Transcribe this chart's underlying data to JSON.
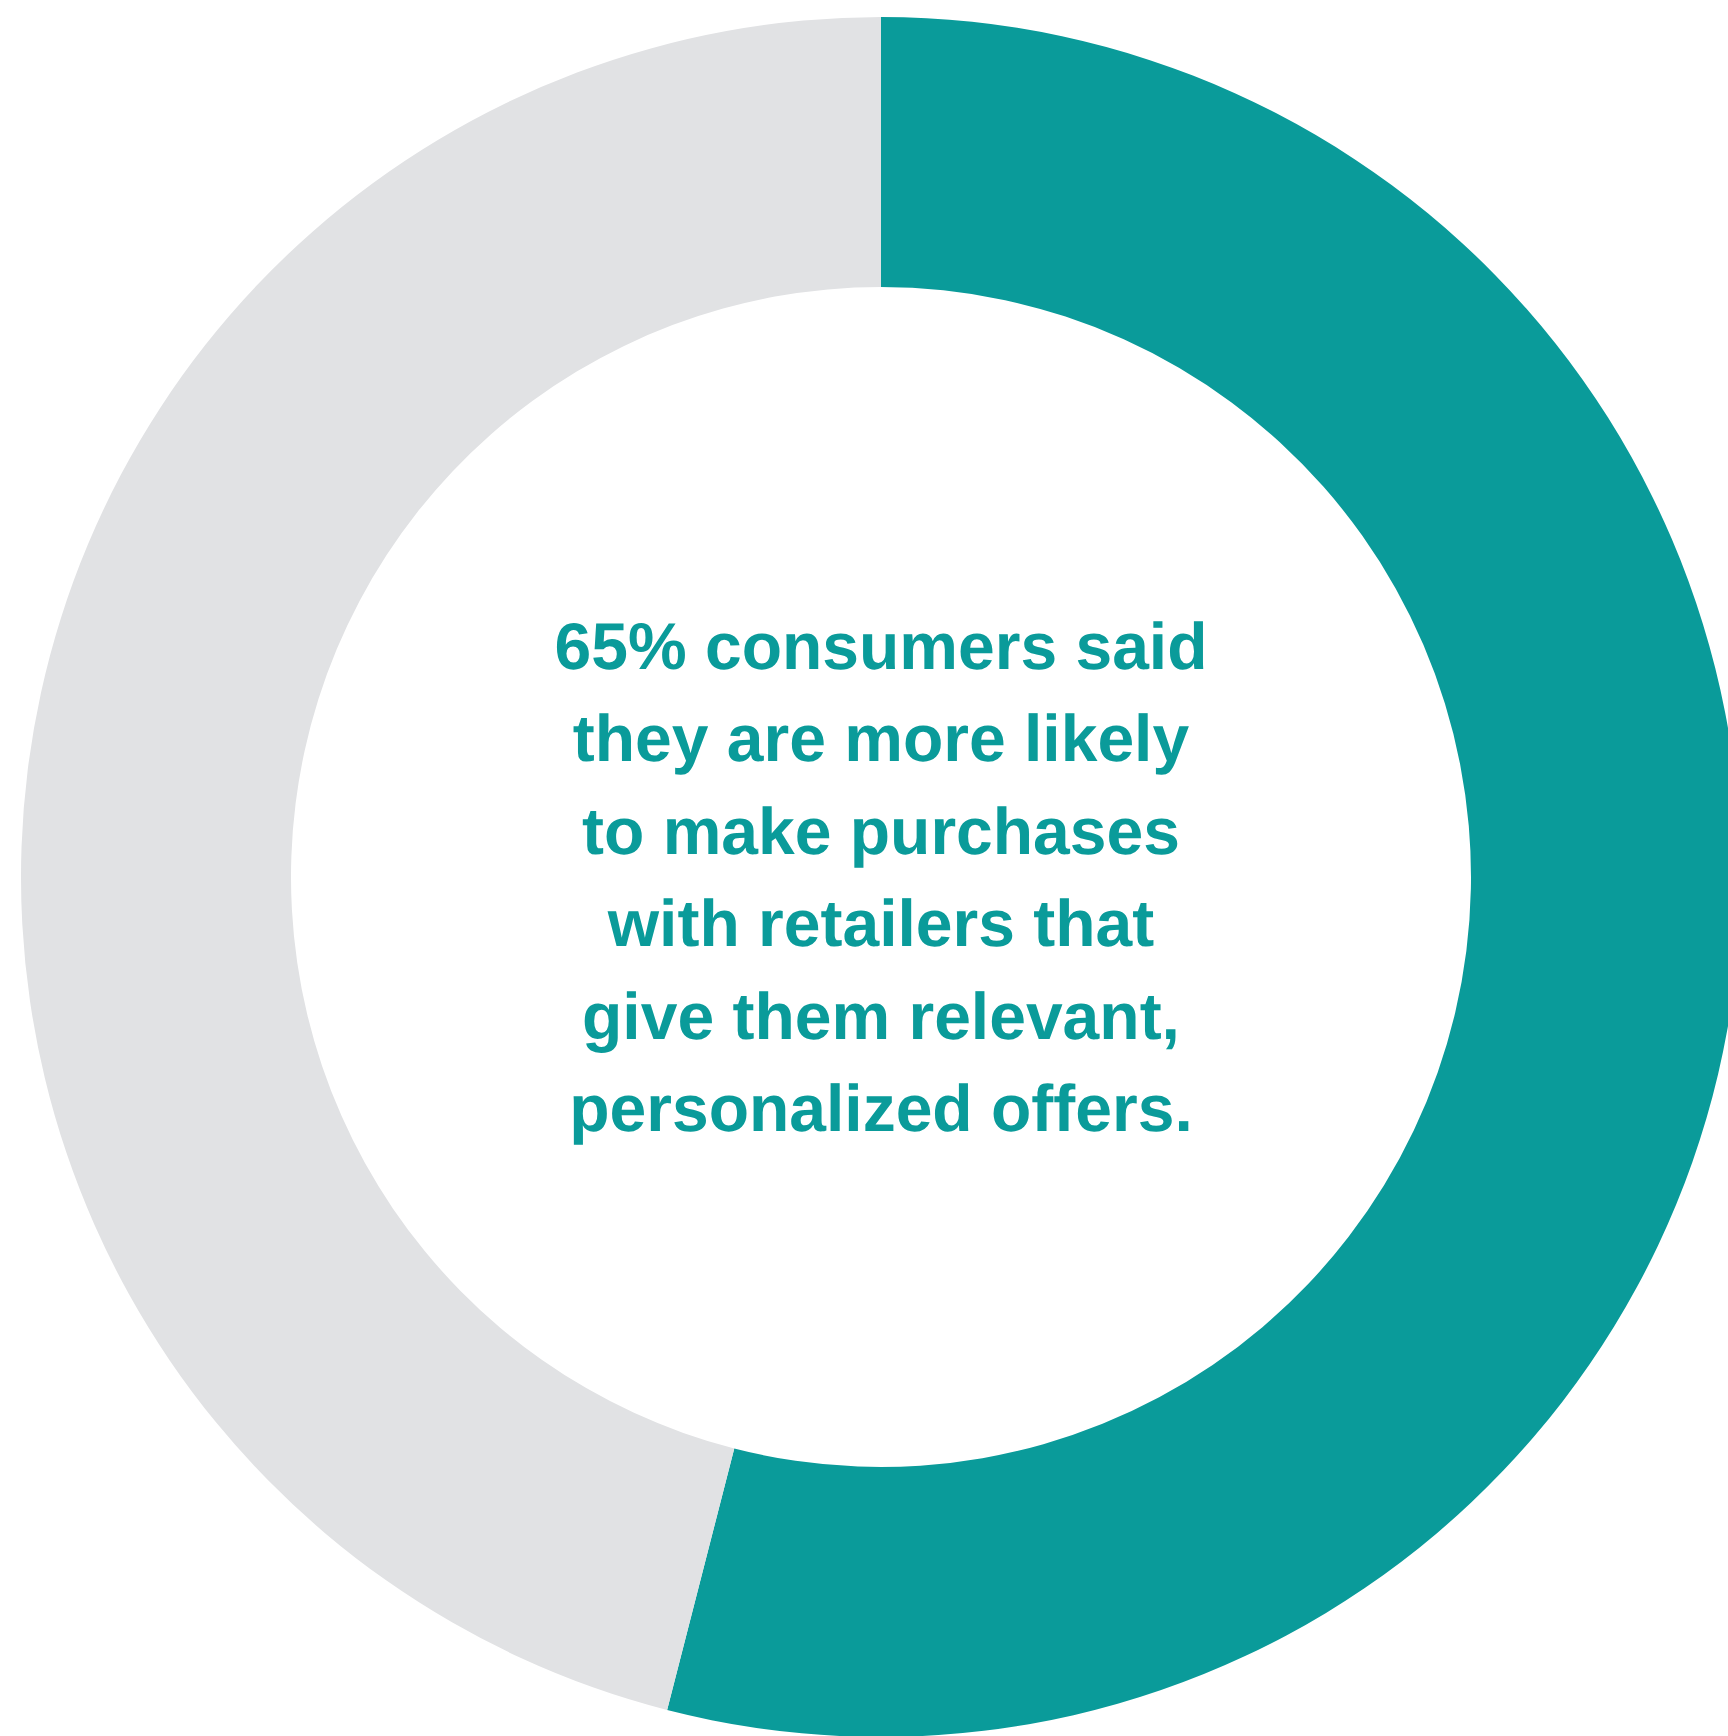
{
  "chart_data": {
    "type": "donut",
    "categories": [
      null,
      null
    ],
    "values": [
      54,
      46
    ],
    "colors": [
      "#0a9b9a",
      "#e1e2e4"
    ],
    "annotations": [
      "65% consumers said\nthey are more likely\nto make purchases\nwith retailers that\ngive them relevant,\npersonalized offers."
    ]
  }
}
